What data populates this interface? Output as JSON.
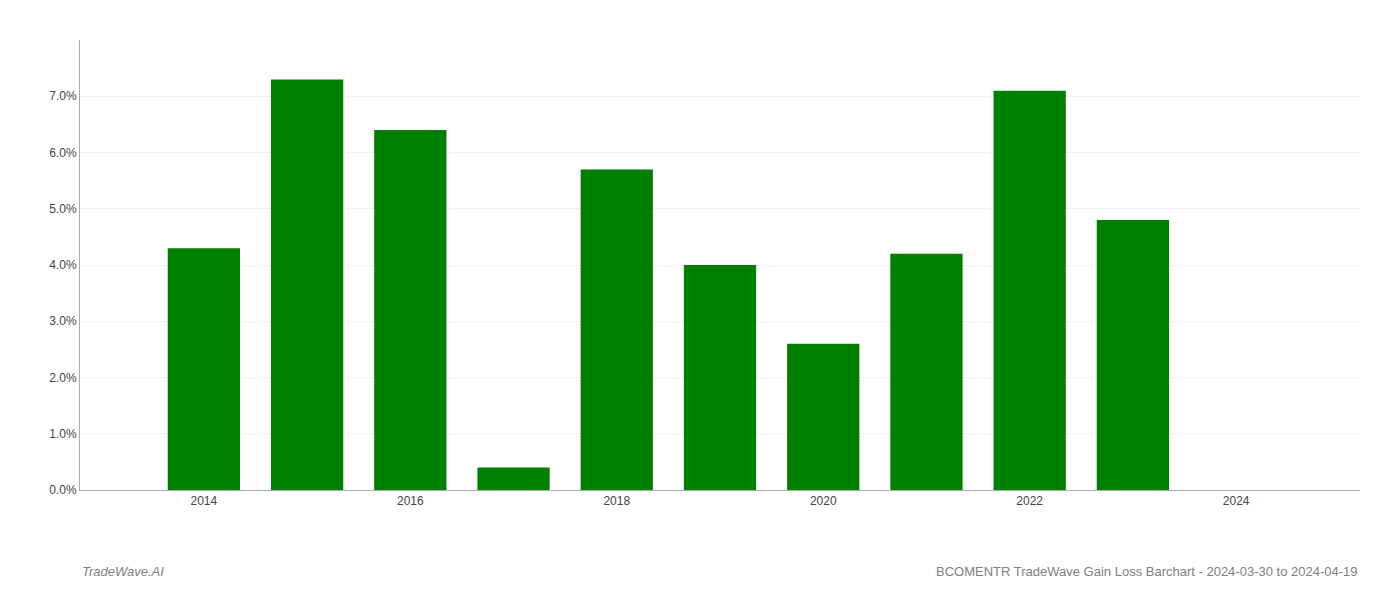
{
  "chart_data": {
    "type": "bar",
    "x": [
      2014,
      2015,
      2016,
      2017,
      2018,
      2019,
      2020,
      2021,
      2022,
      2023
    ],
    "values": [
      0.043,
      0.073,
      0.064,
      0.004,
      0.057,
      0.04,
      0.026,
      0.042,
      0.071,
      0.048
    ],
    "color": "#008000",
    "xlim": [
      2012.8,
      2025.2
    ],
    "xticks": [
      2014,
      2016,
      2018,
      2020,
      2022,
      2024
    ],
    "ylim": [
      0,
      0.08
    ],
    "yticks": [
      {
        "value": 0.0,
        "label": "0.0%"
      },
      {
        "value": 0.01,
        "label": "1.0%"
      },
      {
        "value": 0.02,
        "label": "2.0%"
      },
      {
        "value": 0.03,
        "label": "3.0%"
      },
      {
        "value": 0.04,
        "label": "4.0%"
      },
      {
        "value": 0.05,
        "label": "5.0%"
      },
      {
        "value": 0.06,
        "label": "6.0%"
      },
      {
        "value": 0.07,
        "label": "7.0%"
      }
    ],
    "grid": true,
    "annotations": [
      "TradeWave.AI",
      "BCOMENTR TradeWave Gain Loss Barchart - 2024-03-30 to 2024-04-19"
    ]
  }
}
